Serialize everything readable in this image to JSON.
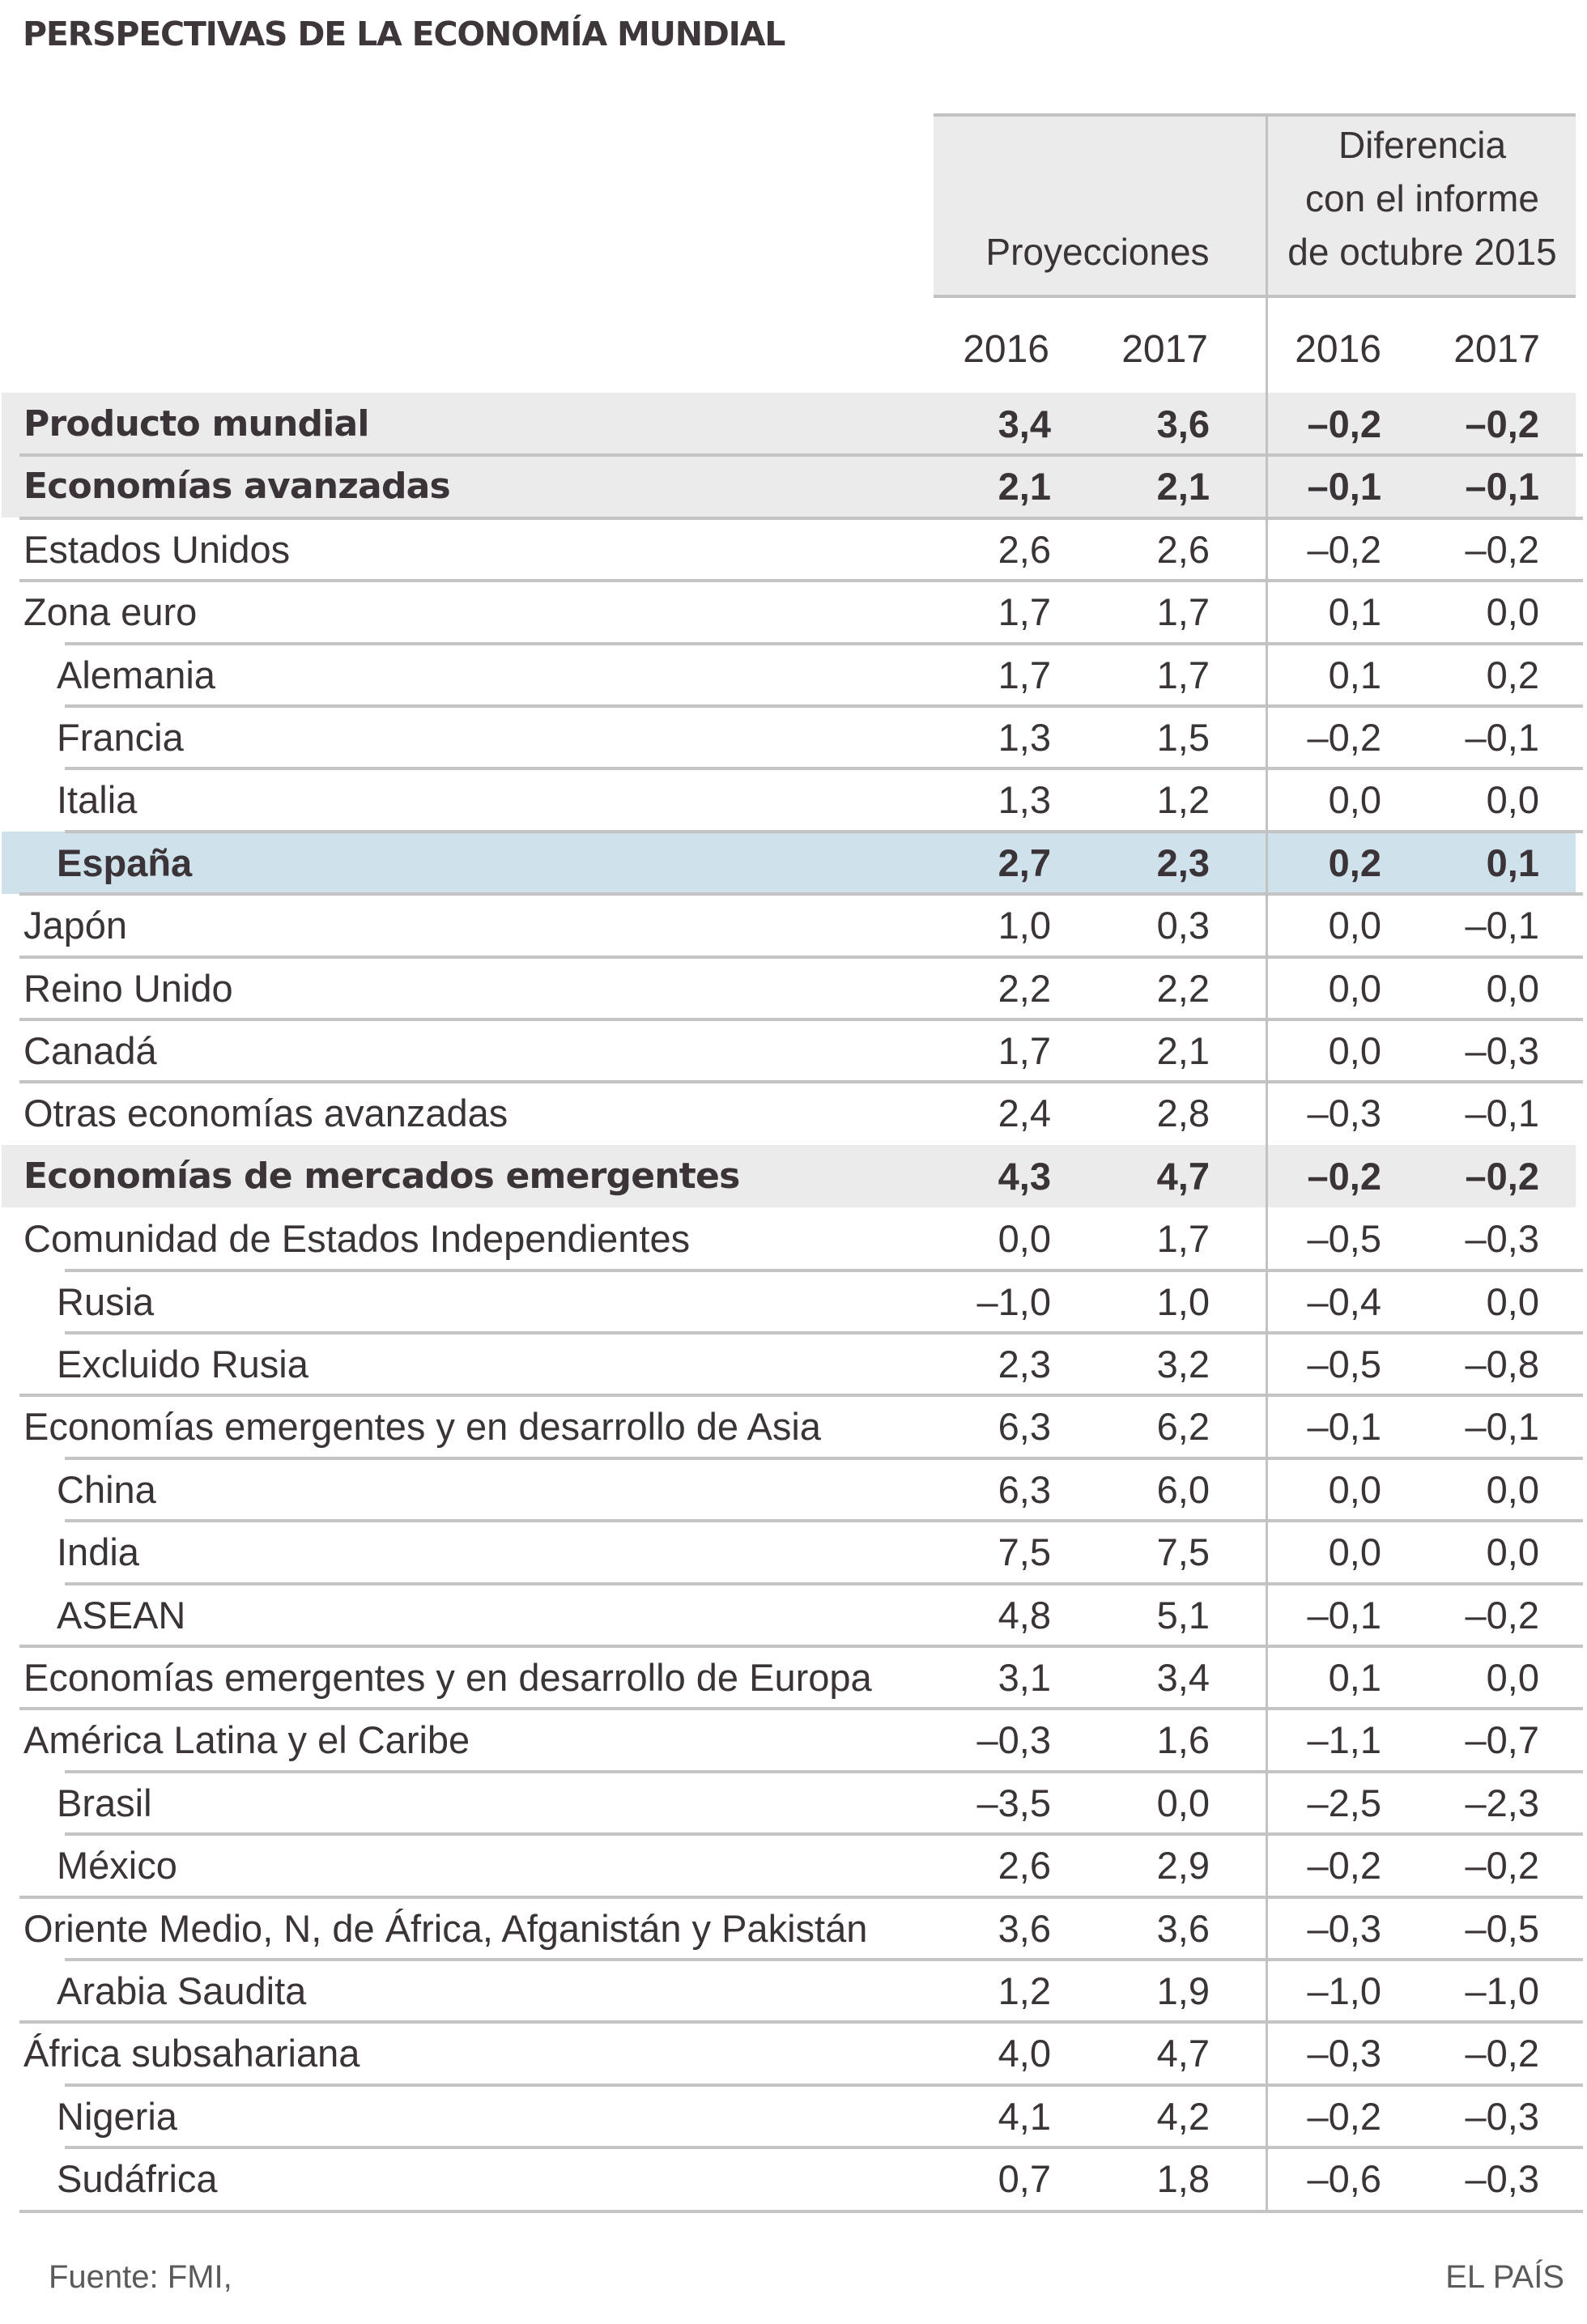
{
  "title": "PERSPECTIVAS DE LA ECONOMÍA MUNDIAL",
  "colors": {
    "group_band": "#ebebeb",
    "highlight_band": "#cfe1ea",
    "text": "#3a3338",
    "rule": "#c4c4c4"
  },
  "header": {
    "projections": "Proyecciones",
    "difference": "Diferencia con el informe de octubre 2015",
    "difference_lines": [
      "Diferencia",
      "con el informe",
      "de octubre 2015"
    ],
    "years": [
      "2016",
      "2017",
      "2016",
      "2017"
    ]
  },
  "rows": [
    {
      "label": "Producto mundial",
      "level": 0,
      "style": "group",
      "values": [
        "3,4",
        "3,6",
        "–0,2",
        "–0,2"
      ]
    },
    {
      "label": "Economías avanzadas",
      "level": 0,
      "style": "group",
      "values": [
        "2,1",
        "2,1",
        "–0,1",
        "–0,1"
      ]
    },
    {
      "label": "Estados Unidos",
      "level": 0,
      "style": "normal",
      "values": [
        "2,6",
        "2,6",
        "–0,2",
        "–0,2"
      ]
    },
    {
      "label": "Zona euro",
      "level": 0,
      "style": "normal",
      "values": [
        "1,7",
        "1,7",
        "0,1",
        "0,0"
      ]
    },
    {
      "label": "Alemania",
      "level": 1,
      "style": "normal",
      "values": [
        "1,7",
        "1,7",
        "0,1",
        "0,2"
      ]
    },
    {
      "label": "Francia",
      "level": 1,
      "style": "normal",
      "values": [
        "1,3",
        "1,5",
        "–0,2",
        "–0,1"
      ]
    },
    {
      "label": "Italia",
      "level": 1,
      "style": "normal",
      "values": [
        "1,3",
        "1,2",
        "0,0",
        "0,0"
      ]
    },
    {
      "label": "España",
      "level": 1,
      "style": "highlight",
      "values": [
        "2,7",
        "2,3",
        "0,2",
        "0,1"
      ]
    },
    {
      "label": "Japón",
      "level": 0,
      "style": "normal",
      "values": [
        "1,0",
        "0,3",
        "0,0",
        "–0,1"
      ]
    },
    {
      "label": "Reino Unido",
      "level": 0,
      "style": "normal",
      "values": [
        "2,2",
        "2,2",
        "0,0",
        "0,0"
      ]
    },
    {
      "label": "Canadá",
      "level": 0,
      "style": "normal",
      "values": [
        "1,7",
        "2,1",
        "0,0",
        "–0,3"
      ]
    },
    {
      "label": "Otras economías avanzadas",
      "level": 0,
      "style": "normal",
      "values": [
        "2,4",
        "2,8",
        "–0,3",
        "–0,1"
      ]
    },
    {
      "label": "Economías de mercados emergentes",
      "level": 0,
      "style": "group",
      "values": [
        "4,3",
        "4,7",
        "–0,2",
        "–0,2"
      ]
    },
    {
      "label": "Comunidad de Estados Independientes",
      "level": 0,
      "style": "normal",
      "values": [
        "0,0",
        "1,7",
        "–0,5",
        "–0,3"
      ]
    },
    {
      "label": "Rusia",
      "level": 1,
      "style": "normal",
      "values": [
        "–1,0",
        "1,0",
        "–0,4",
        "0,0"
      ]
    },
    {
      "label": "Excluido Rusia",
      "level": 1,
      "style": "normal",
      "values": [
        "2,3",
        "3,2",
        "–0,5",
        "–0,8"
      ]
    },
    {
      "label": "Economías emergentes y en desarrollo de Asia",
      "level": 0,
      "style": "normal",
      "values": [
        "6,3",
        "6,2",
        "–0,1",
        "–0,1"
      ]
    },
    {
      "label": "China",
      "level": 1,
      "style": "normal",
      "values": [
        "6,3",
        "6,0",
        "0,0",
        "0,0"
      ]
    },
    {
      "label": "India",
      "level": 1,
      "style": "normal",
      "values": [
        "7,5",
        "7,5",
        "0,0",
        "0,0"
      ]
    },
    {
      "label": "ASEAN",
      "level": 1,
      "style": "normal",
      "values": [
        "4,8",
        "5,1",
        "–0,1",
        "–0,2"
      ]
    },
    {
      "label": "Economías emergentes y en desarrollo de Europa",
      "level": 0,
      "style": "normal",
      "values": [
        "3,1",
        "3,4",
        "0,1",
        "0,0"
      ]
    },
    {
      "label": "América Latina y el Caribe",
      "level": 0,
      "style": "normal",
      "values": [
        "–0,3",
        "1,6",
        "–1,1",
        "–0,7"
      ]
    },
    {
      "label": "Brasil",
      "level": 1,
      "style": "normal",
      "values": [
        "–3,5",
        "0,0",
        "–2,5",
        "–2,3"
      ]
    },
    {
      "label": "México",
      "level": 1,
      "style": "normal",
      "values": [
        "2,6",
        "2,9",
        "–0,2",
        "–0,2"
      ]
    },
    {
      "label": "Oriente Medio, N, de África, Afganistán y Pakistán",
      "level": 0,
      "style": "normal",
      "values": [
        "3,6",
        "3,6",
        "–0,3",
        "–0,5"
      ]
    },
    {
      "label": "Arabia Saudita",
      "level": 1,
      "style": "normal",
      "values": [
        "1,2",
        "1,9",
        "–1,0",
        "–1,0"
      ]
    },
    {
      "label": "África subsahariana",
      "level": 0,
      "style": "normal",
      "values": [
        "4,0",
        "4,7",
        "–0,3",
        "–0,2"
      ]
    },
    {
      "label": "Nigeria",
      "level": 1,
      "style": "normal",
      "values": [
        "4,1",
        "4,2",
        "–0,2",
        "–0,3"
      ]
    },
    {
      "label": "Sudáfrica",
      "level": 1,
      "style": "normal",
      "values": [
        "0,7",
        "1,8",
        "–0,6",
        "–0,3"
      ]
    }
  ],
  "footer": {
    "source": "Fuente: FMI,",
    "brand": "EL PAÍS"
  }
}
